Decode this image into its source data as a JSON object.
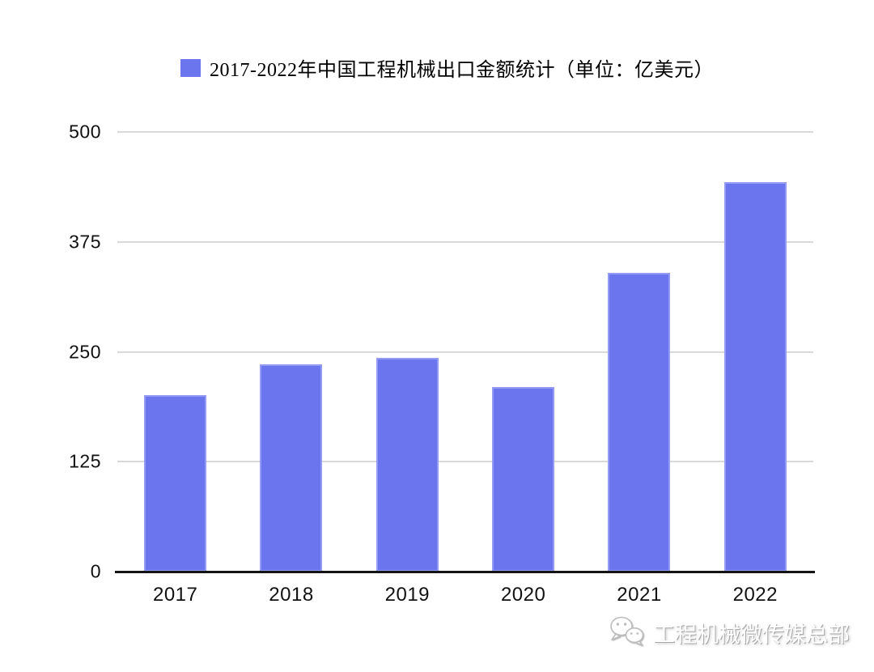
{
  "legend": {
    "title": "2017-2022年中国工程机械出口金额统计（单位：亿美元）",
    "swatch_color": "#6b75ed"
  },
  "chart_data": {
    "type": "bar",
    "title": "2017-2022年中国工程机械出口金额统计（单位：亿美元）",
    "categories": [
      "2017",
      "2018",
      "2019",
      "2020",
      "2021",
      "2022"
    ],
    "values": [
      201,
      236,
      243,
      210,
      340,
      443
    ],
    "unit": "亿美元",
    "xlabel": "",
    "ylabel": "",
    "ylim": [
      0,
      500
    ],
    "yticks": [
      0,
      125,
      250,
      375,
      500
    ],
    "ytick_labels": [
      "0",
      "125",
      "250",
      "375",
      "500"
    ],
    "grid": true,
    "legend_position": "top",
    "bar_color": "#6b75ed",
    "gridline_color": "#d9d9d9",
    "axis_color": "#141414",
    "label_color": "#111111"
  },
  "watermark": {
    "text": "工程机械微传媒总部",
    "icon": "wechat-icon"
  }
}
